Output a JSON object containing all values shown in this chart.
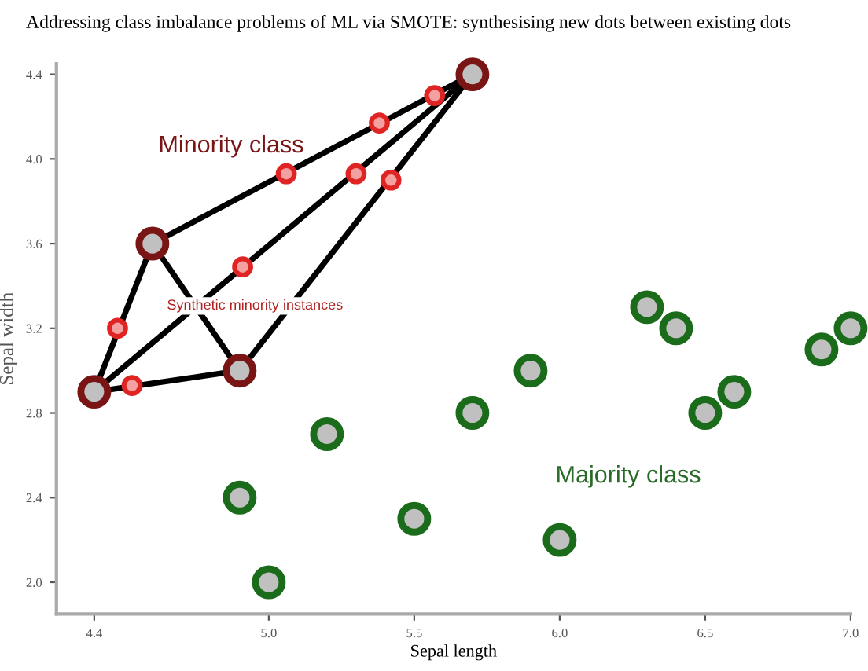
{
  "chart_data": {
    "type": "scatter",
    "title": "Addressing class imbalance problems of ML via SMOTE: synthesising new dots between existing dots",
    "xlabel": "Sepal length",
    "ylabel": "Sepal width",
    "xlim": [
      4.27,
      7.0
    ],
    "ylim": [
      1.85,
      4.45
    ],
    "xticks": [
      {
        "value": 4.4,
        "label": "4.4"
      },
      {
        "value": 5.0,
        "label": "5.0"
      },
      {
        "value": 5.5,
        "label": "5.5"
      },
      {
        "value": 6.0,
        "label": "6.0"
      },
      {
        "value": 6.5,
        "label": "6.5"
      },
      {
        "value": 7.0,
        "label": "7.0"
      }
    ],
    "yticks": [
      {
        "value": 2.0,
        "label": "2.0"
      },
      {
        "value": 2.4,
        "label": "2.4"
      },
      {
        "value": 2.8,
        "label": "2.8"
      },
      {
        "value": 3.2,
        "label": "3.2"
      },
      {
        "value": 3.6,
        "label": "3.6"
      },
      {
        "value": 4.0,
        "label": "4.0"
      },
      {
        "value": 4.4,
        "label": "4.4"
      }
    ],
    "grid": false,
    "legend": false,
    "marker": "circle",
    "series": [
      {
        "type": "line",
        "marker": "none",
        "color": "#000000",
        "x": [
          4.4,
          4.6
        ],
        "values": [
          2.9,
          3.6
        ]
      },
      {
        "type": "line",
        "marker": "none",
        "color": "#000000",
        "x": [
          4.4,
          4.9
        ],
        "values": [
          2.9,
          3.0
        ]
      },
      {
        "type": "line",
        "marker": "none",
        "color": "#000000",
        "x": [
          4.4,
          5.7
        ],
        "values": [
          2.9,
          4.4
        ]
      },
      {
        "type": "line",
        "marker": "none",
        "color": "#000000",
        "x": [
          4.6,
          4.9
        ],
        "values": [
          3.6,
          3.0
        ]
      },
      {
        "type": "line",
        "marker": "none",
        "color": "#000000",
        "x": [
          4.6,
          5.7
        ],
        "values": [
          3.6,
          4.4
        ]
      },
      {
        "type": "line",
        "marker": "none",
        "color": "#000000",
        "x": [
          4.9,
          5.7
        ],
        "values": [
          3.0,
          4.4
        ]
      },
      {
        "color": "#7a1515",
        "x": [
          4.4,
          4.6,
          4.9,
          5.7
        ],
        "values": [
          2.9,
          3.6,
          3.0,
          4.4
        ]
      },
      {
        "color": "#e02424",
        "x": [
          4.48,
          4.53,
          4.91,
          5.06,
          5.3,
          5.38,
          5.42,
          5.57
        ],
        "values": [
          3.2,
          2.93,
          3.49,
          3.93,
          3.93,
          4.17,
          3.9,
          4.3
        ]
      },
      {
        "color": "#1a6b1a",
        "x": [
          5.0,
          4.9,
          5.2,
          5.5,
          5.7,
          5.9,
          6.0,
          6.3,
          6.4,
          6.5,
          6.6,
          6.9,
          7.0
        ],
        "values": [
          2.0,
          2.4,
          2.7,
          2.3,
          2.8,
          3.0,
          2.2,
          3.3,
          3.2,
          2.8,
          2.9,
          3.1,
          3.2
        ]
      }
    ],
    "annotations": [
      "Minority class",
      "Synthetic minority instances",
      "Majority class"
    ]
  }
}
